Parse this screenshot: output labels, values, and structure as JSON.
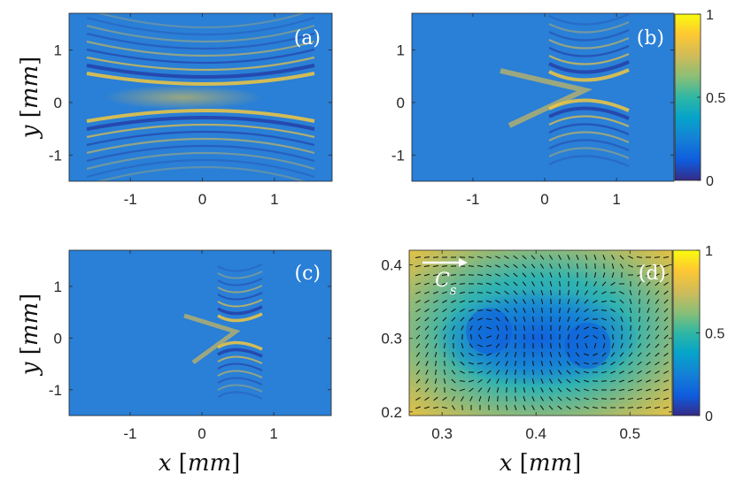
{
  "colors": {
    "background": "#2a7fd6",
    "fringe_high": "#f8c93a",
    "fringe_low": "#2336a0",
    "arrow": "#111111",
    "cs_arrow": "#ffffff"
  },
  "colormap": "parula",
  "chart_data": [
    {
      "type": "heatmap",
      "panel": "a",
      "panel_label": "(a)",
      "xlabel": "",
      "ylabel_var": "y",
      "ylabel_unit": "mm",
      "xlim": [
        -1.85,
        1.8
      ],
      "ylim": [
        -1.5,
        1.7
      ],
      "xticks": [
        -1,
        0,
        1
      ],
      "xtick_labels": [
        "-1",
        "0",
        "1"
      ],
      "yticks": [
        1,
        0,
        -1
      ],
      "ytick_labels": [
        "1",
        "0",
        "-1"
      ],
      "colorbar": false
    },
    {
      "type": "heatmap",
      "panel": "b",
      "panel_label": "(b)",
      "xlabel": "",
      "ylabel_var": "",
      "xlim": [
        -1.85,
        1.8
      ],
      "ylim": [
        -1.5,
        1.7
      ],
      "xticks": [
        -1,
        0,
        1
      ],
      "xtick_labels": [
        "-1",
        "0",
        "1"
      ],
      "yticks": [
        1,
        0,
        -1
      ],
      "ytick_labels": [
        "1",
        "0",
        "-1"
      ],
      "colorbar": true,
      "colorbar_ticks": [
        1,
        0.5,
        0
      ],
      "colorbar_labels": [
        "1",
        "0.5",
        "0"
      ]
    },
    {
      "type": "heatmap",
      "panel": "c",
      "panel_label": "(c)",
      "xlabel_var": "x",
      "xlabel_unit": "mm",
      "ylabel_var": "y",
      "ylabel_unit": "mm",
      "xlim": [
        -1.85,
        1.8
      ],
      "ylim": [
        -1.5,
        1.7
      ],
      "xticks": [
        -1,
        0,
        1
      ],
      "xtick_labels": [
        "-1",
        "0",
        "1"
      ],
      "yticks": [
        1,
        0,
        -1
      ],
      "ytick_labels": [
        "1",
        "0",
        "-1"
      ],
      "colorbar": false
    },
    {
      "type": "heatmap",
      "panel": "d",
      "panel_label": "(d)",
      "overlay": "quiver",
      "cs_label": "C",
      "cs_subscript": "s",
      "xlabel_var": "x",
      "xlabel_unit": "mm",
      "xlim": [
        0.265,
        0.545
      ],
      "ylim": [
        0.195,
        0.42
      ],
      "xticks": [
        0.3,
        0.4,
        0.5
      ],
      "xtick_labels": [
        "0.3",
        "0.4",
        "0.5"
      ],
      "yticks": [
        0.4,
        0.3,
        0.2
      ],
      "ytick_labels": [
        "0.4",
        "0.3",
        "0.2"
      ],
      "vortices": [
        {
          "x": 0.35,
          "y": 0.31
        },
        {
          "x": 0.455,
          "y": 0.29
        }
      ],
      "colorbar": true,
      "colorbar_ticks": [
        1,
        0.5,
        0
      ],
      "colorbar_labels": [
        "1",
        "0.5",
        "0"
      ]
    }
  ]
}
